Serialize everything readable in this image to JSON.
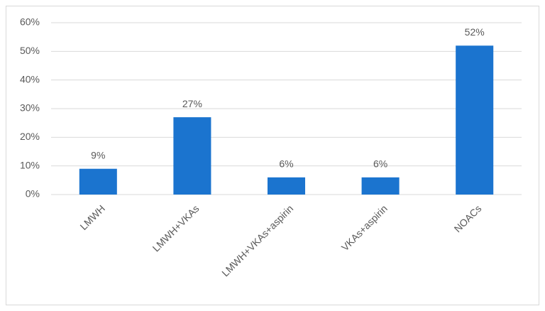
{
  "chart_data": {
    "type": "bar",
    "categories": [
      "LMWH",
      "LMWH+VKAs",
      "LMWH+VKAs+aspirin",
      "VKAs+aspirin",
      "NOACs"
    ],
    "values": [
      9,
      27,
      6,
      6,
      52
    ],
    "value_labels": [
      "9%",
      "27%",
      "6%",
      "6%",
      "52%"
    ],
    "color": "#1b74cf",
    "ylim": [
      0,
      60
    ],
    "yticks": [
      {
        "value": 0,
        "label": "0%"
      },
      {
        "value": 10,
        "label": "10%"
      },
      {
        "value": 20,
        "label": "20%"
      },
      {
        "value": 30,
        "label": "30%"
      },
      {
        "value": 40,
        "label": "40%"
      },
      {
        "value": 50,
        "label": "50%"
      },
      {
        "value": 60,
        "label": "60%"
      }
    ],
    "grid": true
  }
}
